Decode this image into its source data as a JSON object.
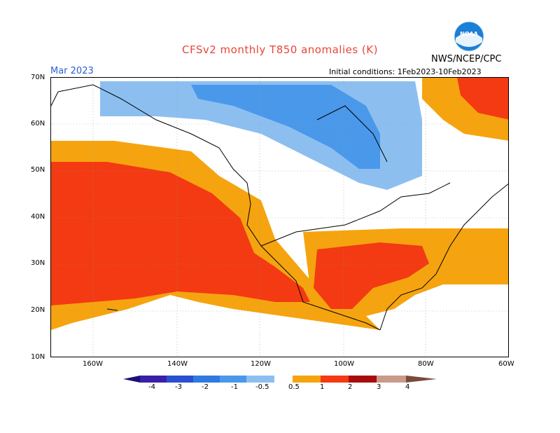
{
  "title": "CFSv2 monthly T850 anomalies (K)",
  "org": "NWS/NCEP/CPC",
  "logo_text": "NOAA",
  "month": "Mar 2023",
  "initial_conditions": "Initial conditions: 1Feb2023-10Feb2023",
  "lat_labels": [
    "70N",
    "60N",
    "50N",
    "40N",
    "30N",
    "20N",
    "10N"
  ],
  "lon_labels": [
    "160W",
    "140W",
    "120W",
    "100W",
    "80W",
    "60W"
  ],
  "colorbar": {
    "labels": [
      "-4",
      "-3",
      "-2",
      "-1",
      "-0.5",
      "0.5",
      "1",
      "2",
      "3",
      "4"
    ],
    "colors": [
      "#3a1fa8",
      "#2a4fd0",
      "#2f7ae0",
      "#4a98ea",
      "#8cbff0",
      "#ffffff",
      "#f5a40f",
      "#f33a12",
      "#a80d0d",
      "#c99a8a",
      "#7a4a3a"
    ]
  },
  "map_colors": {
    "weak_warm": "#f5a40f",
    "warm": "#f33a12",
    "weak_cold": "#8cbff0",
    "cold": "#4a98ea"
  }
}
